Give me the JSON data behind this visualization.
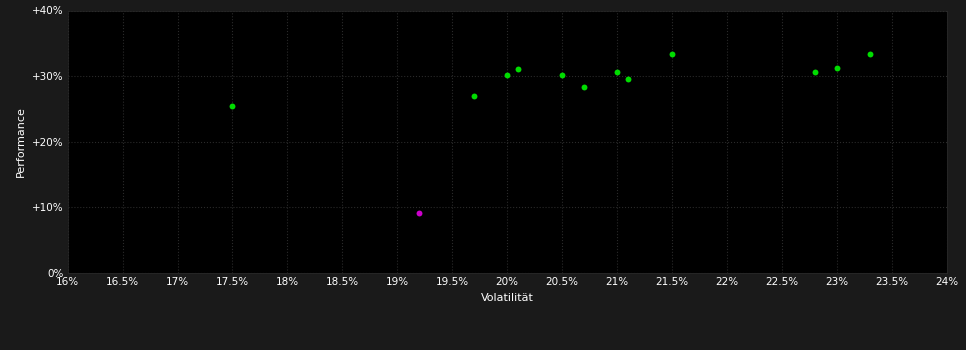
{
  "background_color": "#1a1a1a",
  "plot_bg_color": "#000000",
  "grid_color": "#2a2a2a",
  "green_color": "#00dd00",
  "magenta_color": "#cc00cc",
  "xlabel": "Volatilität",
  "ylabel": "Performance",
  "xlim": [
    0.16,
    0.24
  ],
  "ylim": [
    0.0,
    0.4
  ],
  "xticks": [
    0.16,
    0.165,
    0.17,
    0.175,
    0.18,
    0.185,
    0.19,
    0.195,
    0.2,
    0.205,
    0.21,
    0.215,
    0.22,
    0.225,
    0.23,
    0.235,
    0.24
  ],
  "yticks": [
    0.0,
    0.1,
    0.2,
    0.3,
    0.4
  ],
  "green_points": [
    [
      0.175,
      0.255
    ],
    [
      0.197,
      0.27
    ],
    [
      0.2,
      0.302
    ],
    [
      0.201,
      0.311
    ],
    [
      0.205,
      0.302
    ],
    [
      0.207,
      0.284
    ],
    [
      0.21,
      0.307
    ],
    [
      0.211,
      0.296
    ],
    [
      0.215,
      0.333
    ],
    [
      0.228,
      0.306
    ],
    [
      0.23,
      0.312
    ],
    [
      0.233,
      0.333
    ]
  ],
  "magenta_points": [
    [
      0.192,
      0.092
    ]
  ],
  "marker_size": 18,
  "xlabel_fontsize": 8,
  "ylabel_fontsize": 8,
  "tick_fontsize": 7.5
}
